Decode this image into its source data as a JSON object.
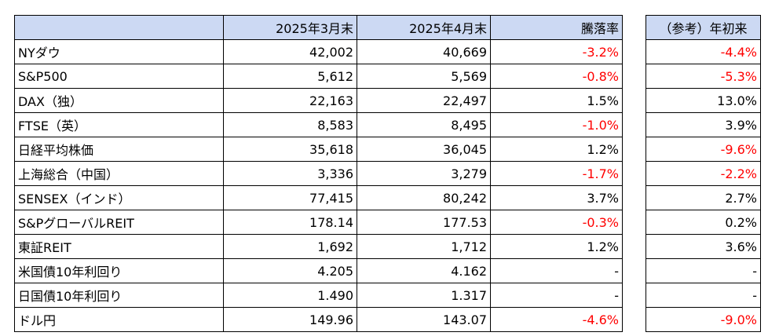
{
  "headers": {
    "blank": "",
    "mar": "2025年3月末",
    "apr": "2025年4月末",
    "change": "騰落率",
    "ytd": "（参考）年初来"
  },
  "rows": [
    {
      "name": "NYダウ",
      "mar": "42,002",
      "apr": "40,669",
      "change": "-3.2%",
      "ytd": "-4.4%"
    },
    {
      "name": "S&P500",
      "mar": "5,612",
      "apr": "5,569",
      "change": "-0.8%",
      "ytd": "-5.3%"
    },
    {
      "name": "DAX（独）",
      "mar": "22,163",
      "apr": "22,497",
      "change": "1.5%",
      "ytd": "13.0%"
    },
    {
      "name": "FTSE（英）",
      "mar": "8,583",
      "apr": "8,495",
      "change": "-1.0%",
      "ytd": "3.9%"
    },
    {
      "name": "日経平均株価",
      "mar": "35,618",
      "apr": "36,045",
      "change": "1.2%",
      "ytd": "-9.6%"
    },
    {
      "name": "上海総合（中国）",
      "mar": "3,336",
      "apr": "3,279",
      "change": "-1.7%",
      "ytd": "-2.2%"
    },
    {
      "name": "SENSEX（インド）",
      "mar": "77,415",
      "apr": "80,242",
      "change": "3.7%",
      "ytd": "2.7%"
    },
    {
      "name": "S&PグローバルREIT",
      "mar": "178.14",
      "apr": "177.53",
      "change": "-0.3%",
      "ytd": "0.2%"
    },
    {
      "name": "東証REIT",
      "mar": "1,692",
      "apr": "1,712",
      "change": "1.2%",
      "ytd": "3.6%"
    },
    {
      "name": "米国債10年利回り",
      "mar": "4.205",
      "apr": "4.162",
      "change": "-",
      "ytd": "-"
    },
    {
      "name": "日国債10年利回り",
      "mar": "1.490",
      "apr": "1.317",
      "change": "-",
      "ytd": "-"
    },
    {
      "name": "ドル円",
      "mar": "149.96",
      "apr": "143.07",
      "change": "-4.6%",
      "ytd": "-9.0%"
    }
  ],
  "colors": {
    "header_bg": "#ccd9f3",
    "negative": "#ff0000",
    "border": "#000000"
  }
}
